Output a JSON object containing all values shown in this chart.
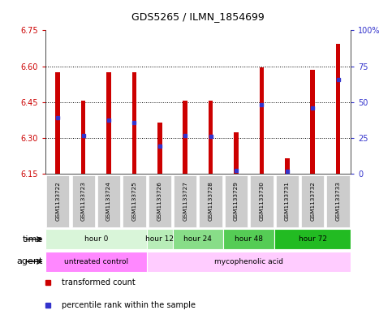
{
  "title": "GDS5265 / ILMN_1854699",
  "samples": [
    "GSM1133722",
    "GSM1133723",
    "GSM1133724",
    "GSM1133725",
    "GSM1133726",
    "GSM1133727",
    "GSM1133728",
    "GSM1133729",
    "GSM1133730",
    "GSM1133731",
    "GSM1133732",
    "GSM1133733"
  ],
  "bar_bottoms": [
    6.15,
    6.15,
    6.15,
    6.15,
    6.15,
    6.15,
    6.15,
    6.15,
    6.15,
    6.15,
    6.15,
    6.15
  ],
  "bar_tops": [
    6.575,
    6.455,
    6.575,
    6.575,
    6.365,
    6.455,
    6.455,
    6.325,
    6.595,
    6.215,
    6.585,
    6.695
  ],
  "percentile_values": [
    6.385,
    6.31,
    6.375,
    6.365,
    6.265,
    6.31,
    6.305,
    6.165,
    6.44,
    6.16,
    6.425,
    6.545
  ],
  "ylim_left": [
    6.15,
    6.75
  ],
  "ylim_right": [
    0,
    100
  ],
  "yticks_left": [
    6.15,
    6.3,
    6.45,
    6.6,
    6.75
  ],
  "yticks_right": [
    0,
    25,
    50,
    75,
    100
  ],
  "ytick_labels_right": [
    "0",
    "25",
    "50",
    "75",
    "100%"
  ],
  "bar_color": "#cc0000",
  "percentile_color": "#3333cc",
  "grid_color": "#000000",
  "time_groups": [
    {
      "label": "hour 0",
      "start": 0,
      "end": 4,
      "color": "#d9f5d9"
    },
    {
      "label": "hour 12",
      "start": 4,
      "end": 5,
      "color": "#b8edb8"
    },
    {
      "label": "hour 24",
      "start": 5,
      "end": 7,
      "color": "#88dd88"
    },
    {
      "label": "hour 48",
      "start": 7,
      "end": 9,
      "color": "#55cc55"
    },
    {
      "label": "hour 72",
      "start": 9,
      "end": 12,
      "color": "#22bb22"
    }
  ],
  "agent_groups": [
    {
      "label": "untreated control",
      "start": 0,
      "end": 4,
      "color": "#ff88ff"
    },
    {
      "label": "mycophenolic acid",
      "start": 4,
      "end": 12,
      "color": "#ffccff"
    }
  ],
  "time_label": "time",
  "agent_label": "agent",
  "legend_items": [
    {
      "label": "transformed count",
      "color": "#cc0000"
    },
    {
      "label": "percentile rank within the sample",
      "color": "#3333cc"
    }
  ],
  "bar_width": 0.18,
  "sample_box_color": "#cccccc",
  "background_color": "#ffffff",
  "left_tick_color": "#cc0000",
  "right_tick_color": "#3333cc"
}
